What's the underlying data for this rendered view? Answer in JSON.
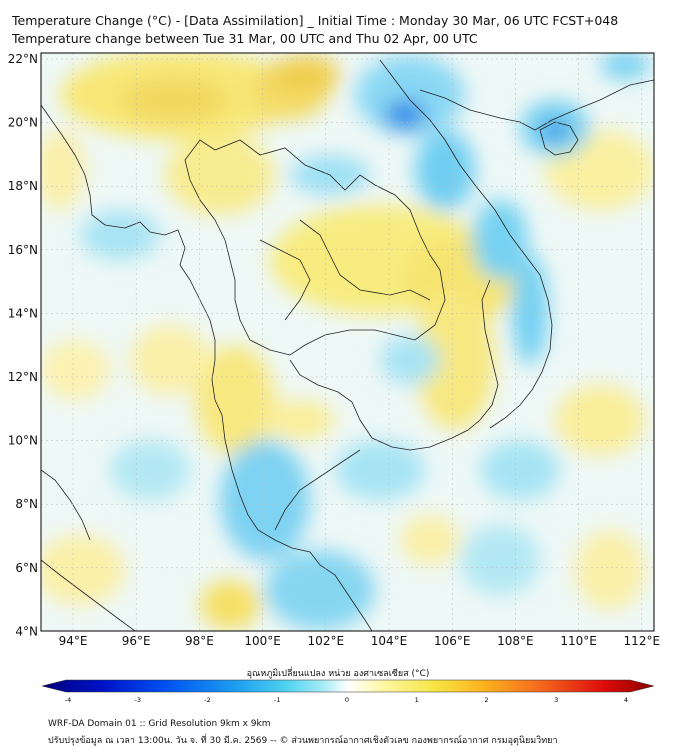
{
  "title_line1": "Temperature Change (°C) - [Data Assimilation] _ Initial Time : Monday 30 Mar, 06 UTC FCST+048",
  "title_line2": "Temperature change between Tue 31 Mar, 00 UTC and Thu 02 Apr, 00 UTC",
  "lat_labels": [
    "22°N",
    "20°N",
    "18°N",
    "16°N",
    "14°N",
    "12°N",
    "10°N",
    "8°N",
    "6°N",
    "4°N"
  ],
  "lon_labels": [
    "94°E",
    "96°E",
    "98°E",
    "100°E",
    "102°E",
    "104°E",
    "106°E",
    "108°E",
    "110°E",
    "112°E"
  ],
  "colorbar": {
    "title": "อุณหภูมิเปลี่ยนแปลง หน่วย องศาเซลเซียส (°C)",
    "tick_labels": [
      "-4",
      "-3",
      "-2",
      "-1",
      "0",
      "1",
      "2",
      "3",
      "4"
    ],
    "range": [
      -4,
      4
    ],
    "colors": [
      "#00007a",
      "#0012c8",
      "#0050f0",
      "#1ea0f0",
      "#50d2f0",
      "#a8ecf6",
      "#ffffff",
      "#fff6a0",
      "#f6e646",
      "#fcb41e",
      "#f4641e",
      "#dc0a0a",
      "#8c0000"
    ]
  },
  "footer_line1": "WRF-DA Domain 01 :: Grid Resolution 9km x 9km",
  "footer_line2": "ปรับปรุงข้อมูล ณ เวลา 13:00น. วัน จ. ที่ 30 มี.ค. 2569 -- © ส่วนพยากรณ์อากาศเชิงตัวเลข กองพยากรณ์อากาศ กรมอุตุนิยมวิทยา"
}
